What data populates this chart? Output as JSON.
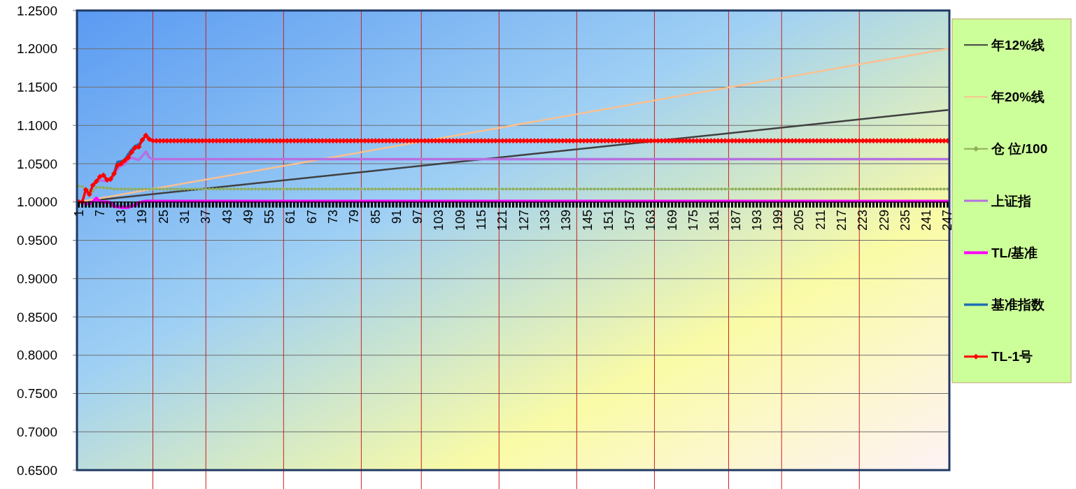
{
  "chart_data": {
    "type": "line",
    "xlim": [
      0.5,
      247.5
    ],
    "xticks": [
      1,
      7,
      13,
      19,
      25,
      31,
      37,
      43,
      49,
      55,
      61,
      67,
      73,
      79,
      85,
      91,
      97,
      103,
      109,
      115,
      121,
      127,
      133,
      139,
      145,
      151,
      157,
      163,
      169,
      175,
      181,
      187,
      193,
      199,
      205,
      211,
      217,
      223,
      229,
      235,
      241,
      247
    ],
    "ylim": [
      0.65,
      1.25
    ],
    "yticks": [
      {
        "value": 0.65,
        "label": "0.6500"
      },
      {
        "value": 0.7,
        "label": "0.7000"
      },
      {
        "value": 0.75,
        "label": "0.7500"
      },
      {
        "value": 0.8,
        "label": "0.8000"
      },
      {
        "value": 0.85,
        "label": "0.8500"
      },
      {
        "value": 0.9,
        "label": "0.9000"
      },
      {
        "value": 0.95,
        "label": "0.9500"
      },
      {
        "value": 1.0,
        "label": "1.0000"
      },
      {
        "value": 1.05,
        "label": "1.0500"
      },
      {
        "value": 1.1,
        "label": "1.1000"
      },
      {
        "value": 1.15,
        "label": "1.1500"
      },
      {
        "value": 1.2,
        "label": "1.2000"
      },
      {
        "value": 1.25,
        "label": "1.2500"
      }
    ],
    "grid": "y",
    "legend": "right",
    "ref_lines": [
      {
        "axis": "x",
        "value": 22,
        "color": "#d02020"
      },
      {
        "axis": "x",
        "value": 37,
        "color": "#d02020"
      },
      {
        "axis": "x",
        "value": 59,
        "color": "#d02020"
      },
      {
        "axis": "x",
        "value": 81,
        "color": "#d02020"
      },
      {
        "axis": "x",
        "value": 98,
        "color": "#d02020"
      },
      {
        "axis": "x",
        "value": 120,
        "color": "#d02020"
      },
      {
        "axis": "x",
        "value": 142,
        "color": "#d02020"
      },
      {
        "axis": "x",
        "value": 164,
        "color": "#d02020"
      },
      {
        "axis": "x",
        "value": 185,
        "color": "#d02020"
      },
      {
        "axis": "x",
        "value": 200,
        "color": "#d02020"
      },
      {
        "axis": "x",
        "value": 222,
        "color": "#d02020"
      }
    ],
    "series": [
      {
        "name": "年12%线",
        "color": "#404040",
        "x": [
          1,
          247
        ],
        "values": [
          1.0,
          1.12
        ]
      },
      {
        "name": "年20%线",
        "color": "#fac090",
        "x": [
          1,
          247
        ],
        "values": [
          1.0,
          1.2
        ]
      },
      {
        "name": "仓 位/100",
        "color": "#8fae5a",
        "marker": "diamond",
        "x": [
          1,
          2,
          4,
          5,
          6,
          7,
          8,
          9,
          10,
          11,
          12,
          13,
          14,
          15,
          16,
          17,
          18,
          19,
          20,
          21,
          22,
          23,
          24,
          25,
          26,
          27,
          28,
          29,
          30,
          31,
          32,
          33,
          34,
          35,
          36,
          37,
          38,
          39,
          40,
          41,
          42,
          43,
          44,
          45,
          46,
          47,
          48,
          49,
          50,
          51,
          52,
          53,
          54,
          55,
          56,
          57,
          58,
          59,
          60,
          61,
          62,
          63,
          64,
          65,
          66,
          67,
          68,
          69,
          70,
          71,
          72,
          73,
          74,
          75,
          76,
          77,
          78,
          79,
          80,
          81,
          82,
          83,
          84,
          85,
          86,
          87,
          88,
          89,
          90,
          91,
          92,
          93,
          94,
          95,
          96,
          97,
          98,
          99,
          100,
          101,
          102,
          103,
          104,
          105,
          106,
          107,
          108,
          109,
          110,
          111,
          112,
          113,
          114,
          115,
          116,
          117,
          118,
          119,
          120,
          121,
          122,
          123,
          124,
          125,
          126,
          127,
          128,
          129,
          130,
          131,
          132,
          133,
          134,
          135,
          136,
          137,
          138,
          139,
          140,
          141,
          142,
          143,
          144,
          145,
          146,
          147,
          148,
          149,
          150,
          151,
          152,
          153,
          154,
          155,
          156,
          157,
          158,
          159,
          160,
          161,
          162,
          163,
          164,
          165,
          166,
          167,
          168,
          169,
          170,
          171,
          172,
          173,
          174,
          175,
          176,
          177,
          178,
          179,
          180,
          181,
          182,
          183,
          184,
          185,
          186,
          187,
          188,
          189,
          190,
          191,
          192,
          193,
          194,
          195,
          196,
          197,
          198,
          199,
          200,
          201,
          202,
          203,
          204,
          205,
          206,
          207,
          208,
          209,
          210,
          211,
          212,
          213,
          214,
          215,
          216,
          217,
          218,
          219,
          220,
          221,
          222,
          223,
          224,
          225,
          226,
          227,
          228,
          229,
          230,
          231,
          232,
          233,
          234,
          235,
          236,
          237,
          238,
          239,
          240,
          241,
          242,
          243,
          244,
          245,
          246,
          247
        ],
        "values": [
          1.021,
          1.02,
          1.015,
          1.014,
          1.019,
          1.019,
          1.019,
          1.018,
          1.018,
          1.017,
          1.017,
          1.017,
          1.017,
          1.017,
          1.017,
          1.017,
          1.017,
          1.017,
          1.017,
          1.017,
          1.017,
          1.017,
          1.017,
          1.017,
          1.017,
          1.017,
          1.017,
          1.017,
          1.017,
          1.017,
          1.017,
          1.017,
          1.017,
          1.017,
          1.017,
          1.017,
          1.017,
          1.017,
          1.017,
          1.017,
          1.017,
          1.017,
          1.017,
          1.017,
          1.017,
          1.017,
          1.017,
          1.017,
          1.017,
          1.017,
          1.017,
          1.017,
          1.017,
          1.017,
          1.017,
          1.017,
          1.017,
          1.017,
          1.017,
          1.017,
          1.017,
          1.017,
          1.017,
          1.017,
          1.017,
          1.017,
          1.017,
          1.017,
          1.017,
          1.017,
          1.017,
          1.017,
          1.017,
          1.017,
          1.017,
          1.017,
          1.017,
          1.017,
          1.017,
          1.017,
          1.017,
          1.017,
          1.017,
          1.017,
          1.017,
          1.017,
          1.017,
          1.017,
          1.017,
          1.017,
          1.017,
          1.017,
          1.017,
          1.017,
          1.017,
          1.017,
          1.017,
          1.017,
          1.017,
          1.017,
          1.017,
          1.017,
          1.017,
          1.017,
          1.017,
          1.017,
          1.017,
          1.017,
          1.017,
          1.017,
          1.017,
          1.017,
          1.017,
          1.017,
          1.017,
          1.017,
          1.017,
          1.017,
          1.017,
          1.017,
          1.017,
          1.017,
          1.017,
          1.017,
          1.017,
          1.017,
          1.017,
          1.017,
          1.017,
          1.017,
          1.017,
          1.017,
          1.017,
          1.017,
          1.017,
          1.017,
          1.017,
          1.017,
          1.017,
          1.017,
          1.017,
          1.017,
          1.017,
          1.017,
          1.017,
          1.017,
          1.017,
          1.017,
          1.017,
          1.017,
          1.017,
          1.017,
          1.017,
          1.017,
          1.017,
          1.017,
          1.017,
          1.017,
          1.017,
          1.017,
          1.017,
          1.017,
          1.017,
          1.017,
          1.017,
          1.017,
          1.017,
          1.017,
          1.017,
          1.017,
          1.017,
          1.017,
          1.017,
          1.017,
          1.017,
          1.017,
          1.017,
          1.017,
          1.017,
          1.017,
          1.017,
          1.017,
          1.017,
          1.017,
          1.017,
          1.017,
          1.017,
          1.017,
          1.017,
          1.017,
          1.017,
          1.017,
          1.017,
          1.017,
          1.017,
          1.017,
          1.017,
          1.017,
          1.017,
          1.017,
          1.017,
          1.017,
          1.017,
          1.017,
          1.017,
          1.017,
          1.017,
          1.017,
          1.017,
          1.017,
          1.017,
          1.017,
          1.017,
          1.017,
          1.017,
          1.017,
          1.017,
          1.017,
          1.017,
          1.017,
          1.017,
          1.017,
          1.017,
          1.017,
          1.017,
          1.017,
          1.017,
          1.017,
          1.017,
          1.017,
          1.017,
          1.017,
          1.017,
          1.017,
          1.017,
          1.017,
          1.017,
          1.017,
          1.017,
          1.017,
          1.017,
          1.017,
          1.017,
          1.017,
          1.017,
          1.017
        ]
      },
      {
        "name": "上证指",
        "color": "#b66fe0",
        "x": [
          7,
          9,
          10,
          12,
          13,
          14,
          15,
          16,
          17,
          18,
          19,
          20,
          21,
          22,
          247
        ],
        "values": [
          1.028,
          1.027,
          1.028,
          1.043,
          1.048,
          1.049,
          1.055,
          1.058,
          1.056,
          1.055,
          1.06,
          1.066,
          1.058,
          1.056,
          1.056
        ]
      },
      {
        "name": "TL/基准",
        "color": "#ff00ff",
        "x": [
          1,
          2,
          3,
          4,
          5,
          6,
          7,
          8,
          9,
          10,
          11,
          12,
          13,
          14,
          15,
          16,
          17,
          18,
          19,
          20,
          21,
          247
        ],
        "values": [
          1.0,
          1.0,
          0.998,
          0.998,
          1.0,
          1.005,
          1.0,
          1.0,
          1.0,
          0.999,
          0.994,
          0.994,
          0.993,
          0.993,
          0.993,
          0.995,
          0.996,
          0.999,
          1.0,
          1.001,
          1.001,
          1.001
        ]
      },
      {
        "name": "基准指数",
        "color": "#1f6fb4",
        "x": [
          11,
          12,
          13,
          14,
          15,
          16,
          17,
          18,
          19
        ],
        "values": [
          1.037,
          1.052,
          1.053,
          1.054,
          1.062,
          1.068,
          1.073,
          1.075,
          1.08
        ]
      },
      {
        "name": "TL-1号",
        "color": "#ff0000",
        "marker": "diamond",
        "x": [
          1,
          2,
          3,
          4,
          5,
          6,
          7,
          8,
          9,
          10,
          11,
          12,
          13,
          14,
          15,
          16,
          17,
          18,
          19,
          20,
          21,
          22,
          23,
          24,
          25,
          26,
          27,
          28,
          29,
          30,
          31,
          32,
          33,
          34,
          35,
          36,
          37,
          38,
          39,
          40,
          41,
          42,
          43,
          44,
          45,
          46,
          47,
          48,
          49,
          50,
          51,
          52,
          53,
          54,
          55,
          56,
          57,
          58,
          59,
          60,
          61,
          62,
          63,
          64,
          65,
          66,
          67,
          68,
          69,
          70,
          71,
          72,
          73,
          74,
          75,
          76,
          77,
          78,
          79,
          80,
          81,
          82,
          83,
          84,
          85,
          86,
          87,
          88,
          89,
          90,
          91,
          92,
          93,
          94,
          95,
          96,
          97,
          98,
          99,
          100,
          101,
          102,
          103,
          104,
          105,
          106,
          107,
          108,
          109,
          110,
          111,
          112,
          113,
          114,
          115,
          116,
          117,
          118,
          119,
          120,
          121,
          122,
          123,
          124,
          125,
          126,
          127,
          128,
          129,
          130,
          131,
          132,
          133,
          134,
          135,
          136,
          137,
          138,
          139,
          140,
          141,
          142,
          143,
          144,
          145,
          146,
          147,
          148,
          149,
          150,
          151,
          152,
          153,
          154,
          155,
          156,
          157,
          158,
          159,
          160,
          161,
          162,
          163,
          164,
          165,
          166,
          167,
          168,
          169,
          170,
          171,
          172,
          173,
          174,
          175,
          176,
          177,
          178,
          179,
          180,
          181,
          182,
          183,
          184,
          185,
          186,
          187,
          188,
          189,
          190,
          191,
          192,
          193,
          194,
          195,
          196,
          197,
          198,
          199,
          200,
          201,
          202,
          203,
          204,
          205,
          206,
          207,
          208,
          209,
          210,
          211,
          212,
          213,
          214,
          215,
          216,
          217,
          218,
          219,
          220,
          221,
          222,
          223,
          224,
          225,
          226,
          227,
          228,
          229,
          230,
          231,
          232,
          233,
          234,
          235,
          236,
          237,
          238,
          239,
          240,
          241,
          242,
          243,
          244,
          245,
          246,
          247
        ],
        "values": [
          1.0,
          1.0,
          1.016,
          1.01,
          1.022,
          1.027,
          1.033,
          1.035,
          1.029,
          1.03,
          1.037,
          1.048,
          1.05,
          1.054,
          1.058,
          1.065,
          1.071,
          1.072,
          1.081,
          1.087,
          1.082,
          1.08,
          1.08,
          1.08,
          1.08,
          1.08,
          1.08,
          1.08,
          1.08,
          1.08,
          1.08,
          1.08,
          1.08,
          1.08,
          1.08,
          1.08,
          1.08,
          1.08,
          1.08,
          1.08,
          1.08,
          1.08,
          1.08,
          1.08,
          1.08,
          1.08,
          1.08,
          1.08,
          1.08,
          1.08,
          1.08,
          1.08,
          1.08,
          1.08,
          1.08,
          1.08,
          1.08,
          1.08,
          1.08,
          1.08,
          1.08,
          1.08,
          1.08,
          1.08,
          1.08,
          1.08,
          1.08,
          1.08,
          1.08,
          1.08,
          1.08,
          1.08,
          1.08,
          1.08,
          1.08,
          1.08,
          1.08,
          1.08,
          1.08,
          1.08,
          1.08,
          1.08,
          1.08,
          1.08,
          1.08,
          1.08,
          1.08,
          1.08,
          1.08,
          1.08,
          1.08,
          1.08,
          1.08,
          1.08,
          1.08,
          1.08,
          1.08,
          1.08,
          1.08,
          1.08,
          1.08,
          1.08,
          1.08,
          1.08,
          1.08,
          1.08,
          1.08,
          1.08,
          1.08,
          1.08,
          1.08,
          1.08,
          1.08,
          1.08,
          1.08,
          1.08,
          1.08,
          1.08,
          1.08,
          1.08,
          1.08,
          1.08,
          1.08,
          1.08,
          1.08,
          1.08,
          1.08,
          1.08,
          1.08,
          1.08,
          1.08,
          1.08,
          1.08,
          1.08,
          1.08,
          1.08,
          1.08,
          1.08,
          1.08,
          1.08,
          1.08,
          1.08,
          1.08,
          1.08,
          1.08,
          1.08,
          1.08,
          1.08,
          1.08,
          1.08,
          1.08,
          1.08,
          1.08,
          1.08,
          1.08,
          1.08,
          1.08,
          1.08,
          1.08,
          1.08,
          1.08,
          1.08,
          1.08,
          1.08,
          1.08,
          1.08,
          1.08,
          1.08,
          1.08,
          1.08,
          1.08,
          1.08,
          1.08,
          1.08,
          1.08,
          1.08,
          1.08,
          1.08,
          1.08,
          1.08,
          1.08,
          1.08,
          1.08,
          1.08,
          1.08,
          1.08,
          1.08,
          1.08,
          1.08,
          1.08,
          1.08,
          1.08,
          1.08,
          1.08,
          1.08,
          1.08,
          1.08,
          1.08,
          1.08,
          1.08,
          1.08,
          1.08,
          1.08,
          1.08,
          1.08,
          1.08,
          1.08,
          1.08,
          1.08,
          1.08,
          1.08,
          1.08,
          1.08,
          1.08,
          1.08,
          1.08,
          1.08,
          1.08,
          1.08,
          1.08,
          1.08,
          1.08,
          1.08,
          1.08,
          1.08,
          1.08,
          1.08,
          1.08,
          1.08,
          1.08,
          1.08,
          1.08,
          1.08,
          1.08,
          1.08,
          1.08,
          1.08,
          1.08,
          1.08,
          1.08,
          1.08,
          1.08,
          1.08,
          1.08,
          1.08,
          1.08,
          1.08
        ]
      }
    ]
  }
}
